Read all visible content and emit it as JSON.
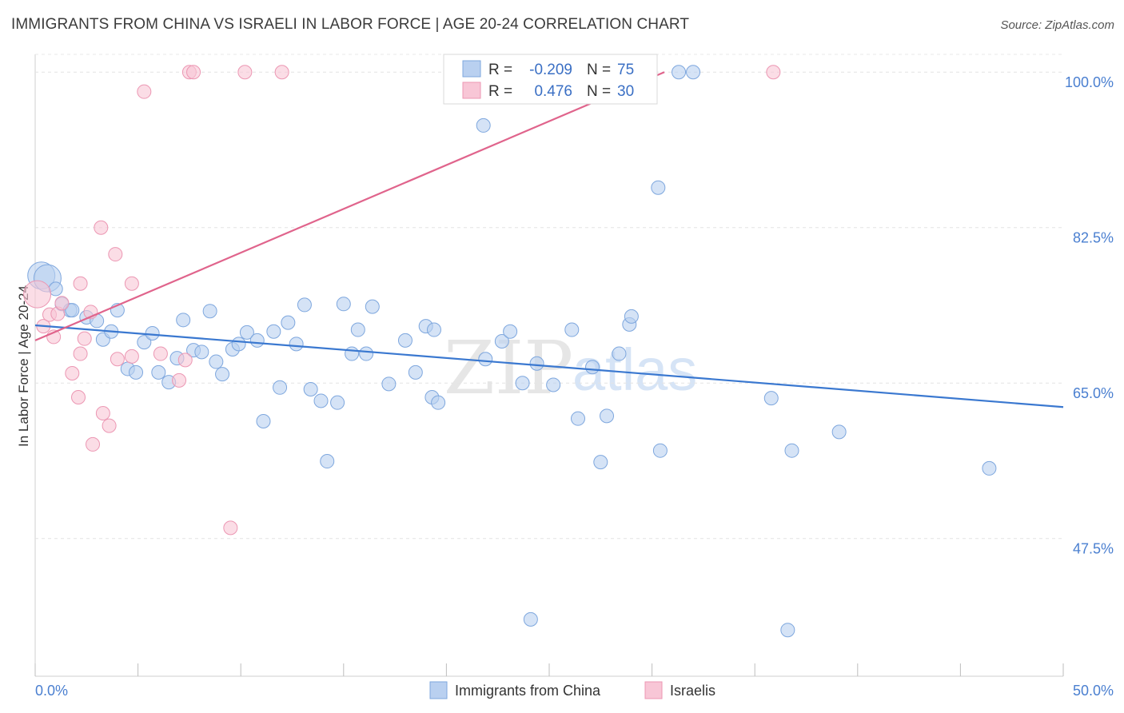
{
  "header": {
    "title": "IMMIGRANTS FROM CHINA VS ISRAELI IN LABOR FORCE | AGE 20-24 CORRELATION CHART",
    "source": "Source: ZipAtlas.com"
  },
  "watermark": {
    "zip": "ZIP",
    "atlas": "atlas"
  },
  "legend_top": {
    "rows": [
      {
        "r_label": "R = ",
        "r_value": "-0.209",
        "n_label": "N = ",
        "n_value": "75"
      },
      {
        "r_label": "R = ",
        "r_value": "0.476",
        "n_label": "N = ",
        "n_value": "30"
      }
    ]
  },
  "legend_bottom": {
    "items": [
      {
        "label": "Immigrants from China"
      },
      {
        "label": "Israelis"
      }
    ]
  },
  "chart_data": {
    "type": "scatter",
    "title": "IMMIGRANTS FROM CHINA VS ISRAELI IN LABOR FORCE | AGE 20-24 CORRELATION CHART",
    "xlabel": "",
    "ylabel": "In Labor Force | Age 20-24",
    "xlim": [
      0,
      50
    ],
    "ylim": [
      32,
      102
    ],
    "x_tick_labels": [
      "0.0%",
      "50.0%"
    ],
    "y_ticks": [
      47.5,
      65.0,
      82.5,
      100.0
    ],
    "y_tick_labels": [
      "47.5%",
      "65.0%",
      "82.5%",
      "100.0%"
    ],
    "grid": true,
    "colors": {
      "china_fill": "#b9d0f0",
      "china_stroke": "#7ea7de",
      "china_line": "#3a78d0",
      "israel_fill": "#f8c6d6",
      "israel_stroke": "#ec97b3",
      "israel_line": "#e0648c"
    },
    "series": [
      {
        "name": "Immigrants from China",
        "points": [
          [
            0.3,
            77.1,
            1
          ],
          [
            0.6,
            76.8,
            1
          ],
          [
            1.0,
            75.6,
            0
          ],
          [
            1.3,
            73.9,
            0
          ],
          [
            1.7,
            73.2,
            0
          ],
          [
            1.8,
            73.2,
            0
          ],
          [
            2.5,
            72.4,
            0
          ],
          [
            3.0,
            72.0,
            0
          ],
          [
            3.3,
            69.9,
            0
          ],
          [
            3.7,
            70.8,
            0
          ],
          [
            4.0,
            73.2,
            0
          ],
          [
            4.5,
            66.6,
            0
          ],
          [
            4.9,
            66.2,
            0
          ],
          [
            5.3,
            69.6,
            0
          ],
          [
            5.7,
            70.6,
            0
          ],
          [
            6.0,
            66.2,
            0
          ],
          [
            6.5,
            65.1,
            0
          ],
          [
            6.9,
            67.8,
            0
          ],
          [
            7.2,
            72.1,
            0
          ],
          [
            7.7,
            68.7,
            0
          ],
          [
            8.1,
            68.5,
            0
          ],
          [
            8.5,
            73.1,
            0
          ],
          [
            8.8,
            67.4,
            0
          ],
          [
            9.1,
            66.0,
            0
          ],
          [
            9.6,
            68.8,
            0
          ],
          [
            9.9,
            69.4,
            0
          ],
          [
            10.3,
            70.7,
            0
          ],
          [
            10.8,
            69.8,
            0
          ],
          [
            11.1,
            60.7,
            0
          ],
          [
            11.6,
            70.8,
            0
          ],
          [
            11.9,
            64.5,
            0
          ],
          [
            12.3,
            71.8,
            0
          ],
          [
            12.7,
            69.4,
            0
          ],
          [
            13.1,
            73.8,
            0
          ],
          [
            13.4,
            64.3,
            0
          ],
          [
            13.9,
            63.0,
            0
          ],
          [
            14.2,
            56.2,
            0
          ],
          [
            14.7,
            62.8,
            0
          ],
          [
            15.0,
            73.9,
            0
          ],
          [
            15.4,
            68.3,
            0
          ],
          [
            15.7,
            71.0,
            0
          ],
          [
            16.1,
            68.3,
            0
          ],
          [
            16.4,
            73.6,
            0
          ],
          [
            17.2,
            64.9,
            0
          ],
          [
            18.0,
            69.8,
            0
          ],
          [
            18.5,
            66.2,
            0
          ],
          [
            19.0,
            71.4,
            0
          ],
          [
            19.3,
            63.4,
            0
          ],
          [
            19.6,
            62.8,
            0
          ],
          [
            19.4,
            71.0,
            0
          ],
          [
            21.9,
            67.7,
            0
          ],
          [
            21.8,
            94.0,
            0
          ],
          [
            22.7,
            69.7,
            0
          ],
          [
            23.1,
            70.8,
            0
          ],
          [
            23.7,
            65.0,
            0
          ],
          [
            24.4,
            67.2,
            0
          ],
          [
            25.2,
            64.8,
            0
          ],
          [
            26.1,
            71.0,
            0
          ],
          [
            26.4,
            61.0,
            0
          ],
          [
            27.1,
            66.8,
            0
          ],
          [
            27.5,
            56.1,
            0
          ],
          [
            27.8,
            61.3,
            0
          ],
          [
            28.4,
            68.3,
            0
          ],
          [
            28.9,
            71.6,
            0
          ],
          [
            29.0,
            72.5,
            0
          ],
          [
            30.4,
            57.4,
            0
          ],
          [
            30.3,
            87.0,
            0
          ],
          [
            31.3,
            100.0,
            0
          ],
          [
            32.0,
            100.0,
            0
          ],
          [
            35.8,
            63.3,
            0
          ],
          [
            36.8,
            57.4,
            0
          ],
          [
            39.1,
            59.5,
            0
          ],
          [
            46.4,
            55.4,
            0
          ],
          [
            24.1,
            38.4,
            0
          ],
          [
            36.6,
            37.2,
            0
          ]
        ],
        "trend": {
          "x": [
            0,
            50
          ],
          "y": [
            71.5,
            62.3
          ]
        }
      },
      {
        "name": "Israelis",
        "points": [
          [
            0.1,
            75.0,
            1
          ],
          [
            0.4,
            71.4,
            0
          ],
          [
            0.7,
            72.7,
            0
          ],
          [
            0.9,
            70.2,
            0
          ],
          [
            1.1,
            72.8,
            0
          ],
          [
            1.3,
            74.0,
            0
          ],
          [
            1.8,
            66.1,
            0
          ],
          [
            2.1,
            63.4,
            0
          ],
          [
            2.2,
            68.3,
            0
          ],
          [
            2.4,
            70.0,
            0
          ],
          [
            2.7,
            73.0,
            0
          ],
          [
            2.8,
            58.1,
            0
          ],
          [
            3.2,
            82.5,
            0
          ],
          [
            3.3,
            61.6,
            0
          ],
          [
            3.6,
            60.2,
            0
          ],
          [
            3.9,
            79.5,
            0
          ],
          [
            4.0,
            67.7,
            0
          ],
          [
            4.7,
            68.0,
            0
          ],
          [
            4.7,
            76.2,
            0
          ],
          [
            5.3,
            97.8,
            0
          ],
          [
            6.1,
            68.3,
            0
          ],
          [
            7.0,
            65.3,
            0
          ],
          [
            7.3,
            67.6,
            0
          ],
          [
            7.5,
            100.0,
            0
          ],
          [
            7.7,
            100.0,
            0
          ],
          [
            9.5,
            48.7,
            0
          ],
          [
            10.2,
            100.0,
            0
          ],
          [
            12.0,
            100.0,
            0
          ],
          [
            35.9,
            100.0,
            0
          ],
          [
            2.2,
            76.2,
            0
          ]
        ],
        "trend": {
          "x": [
            0,
            30.6
          ],
          "y": [
            69.8,
            100.0
          ]
        }
      }
    ]
  }
}
